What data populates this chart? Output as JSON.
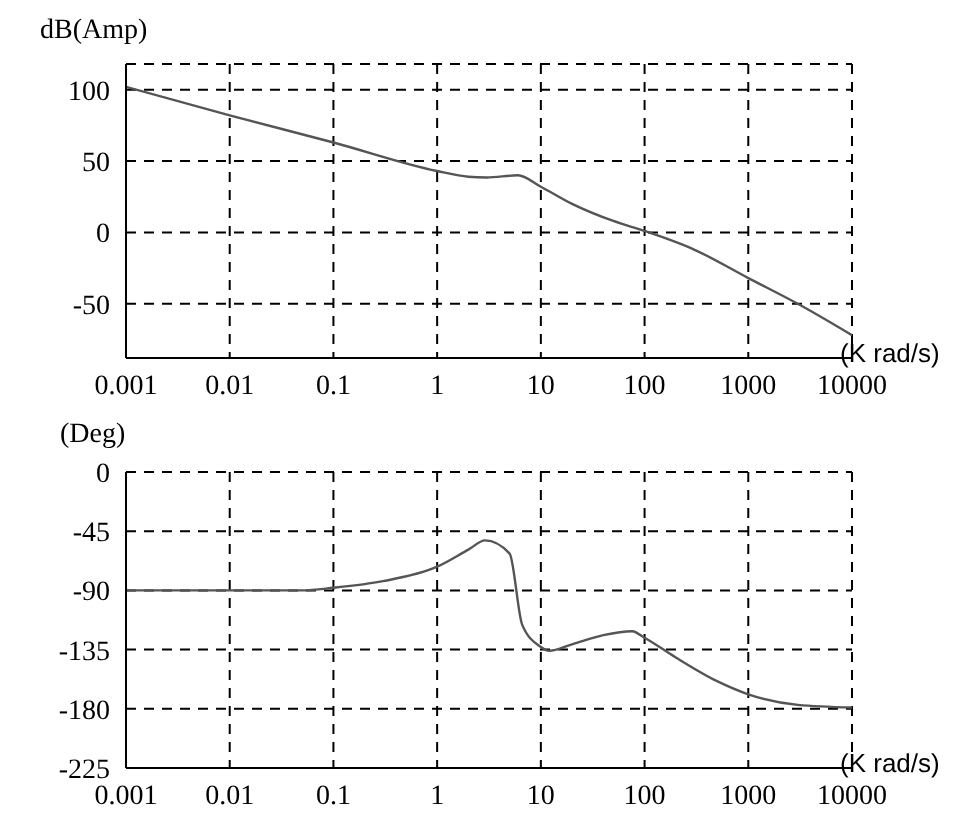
{
  "chart_data": [
    {
      "type": "line",
      "ylabel": "dB(Amp)",
      "xlabel": "(K rad/s)",
      "log": "x",
      "grid": true,
      "color": "#555555",
      "x": [
        0.001,
        0.01,
        0.1,
        1,
        2,
        3,
        6,
        10,
        20,
        50,
        100,
        300,
        1000,
        3000,
        10000
      ],
      "values": [
        102,
        82,
        63,
        43,
        39,
        38.5,
        40,
        32,
        20,
        8,
        1,
        -12,
        -32,
        -50,
        -72
      ],
      "xlim": [
        0.001,
        10000
      ],
      "xticks": [
        0.001,
        0.01,
        0.1,
        1,
        10,
        100,
        1000,
        10000
      ],
      "ylim": [
        -88,
        118
      ],
      "yticks": [
        -50,
        0,
        50,
        100
      ]
    },
    {
      "type": "line",
      "ylabel": "(Deg)",
      "xlabel": "(K rad/s)",
      "log": "x",
      "grid": true,
      "color": "#555555",
      "x": [
        0.001,
        0.05,
        0.1,
        0.3,
        1,
        2,
        2.9,
        5,
        6.6,
        10,
        12,
        20,
        40,
        76,
        100,
        200,
        500,
        1000,
        3000,
        10000
      ],
      "values": [
        -90,
        -90,
        -88,
        -83,
        -72,
        -59,
        -52,
        -62,
        -116,
        -133,
        -136,
        -131,
        -124,
        -121,
        -126,
        -141,
        -159,
        -169,
        -177,
        -179
      ],
      "xlim": [
        0.001,
        10000
      ],
      "xticks": [
        0.001,
        0.01,
        0.1,
        1,
        10,
        100,
        1000,
        10000
      ],
      "ylim": [
        -225,
        0
      ],
      "yticks": [
        -225,
        -180,
        -135,
        -90,
        -45,
        0
      ]
    }
  ]
}
